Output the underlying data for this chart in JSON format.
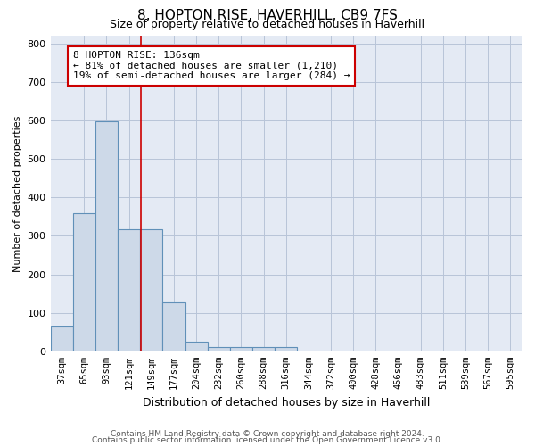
{
  "title": "8, HOPTON RISE, HAVERHILL, CB9 7FS",
  "subtitle": "Size of property relative to detached houses in Haverhill",
  "xlabel": "Distribution of detached houses by size in Haverhill",
  "ylabel": "Number of detached properties",
  "footer_line1": "Contains HM Land Registry data © Crown copyright and database right 2024.",
  "footer_line2": "Contains public sector information licensed under the Open Government Licence v3.0.",
  "categories": [
    "37sqm",
    "65sqm",
    "93sqm",
    "121sqm",
    "149sqm",
    "177sqm",
    "204sqm",
    "232sqm",
    "260sqm",
    "288sqm",
    "316sqm",
    "344sqm",
    "372sqm",
    "400sqm",
    "428sqm",
    "456sqm",
    "483sqm",
    "511sqm",
    "539sqm",
    "567sqm",
    "595sqm"
  ],
  "values": [
    65,
    358,
    597,
    317,
    317,
    128,
    25,
    10,
    10,
    10,
    10,
    0,
    0,
    0,
    0,
    0,
    0,
    0,
    0,
    0,
    0
  ],
  "bar_color": "#cdd9e8",
  "bar_edge_color": "#6090b8",
  "grid_color": "#b8c4d8",
  "bg_color": "#e4eaf4",
  "annotation_text": "8 HOPTON RISE: 136sqm\n← 81% of detached houses are smaller (1,210)\n19% of semi-detached houses are larger (284) →",
  "annotation_box_color": "#ffffff",
  "annotation_box_edge": "#cc0000",
  "vline_color": "#cc0000",
  "ylim": [
    0,
    820
  ],
  "yticks": [
    0,
    100,
    200,
    300,
    400,
    500,
    600,
    700,
    800
  ],
  "title_fontsize": 11,
  "subtitle_fontsize": 9,
  "xlabel_fontsize": 9,
  "ylabel_fontsize": 8,
  "tick_fontsize": 8,
  "xtick_fontsize": 7.5,
  "footer_fontsize": 6.5
}
